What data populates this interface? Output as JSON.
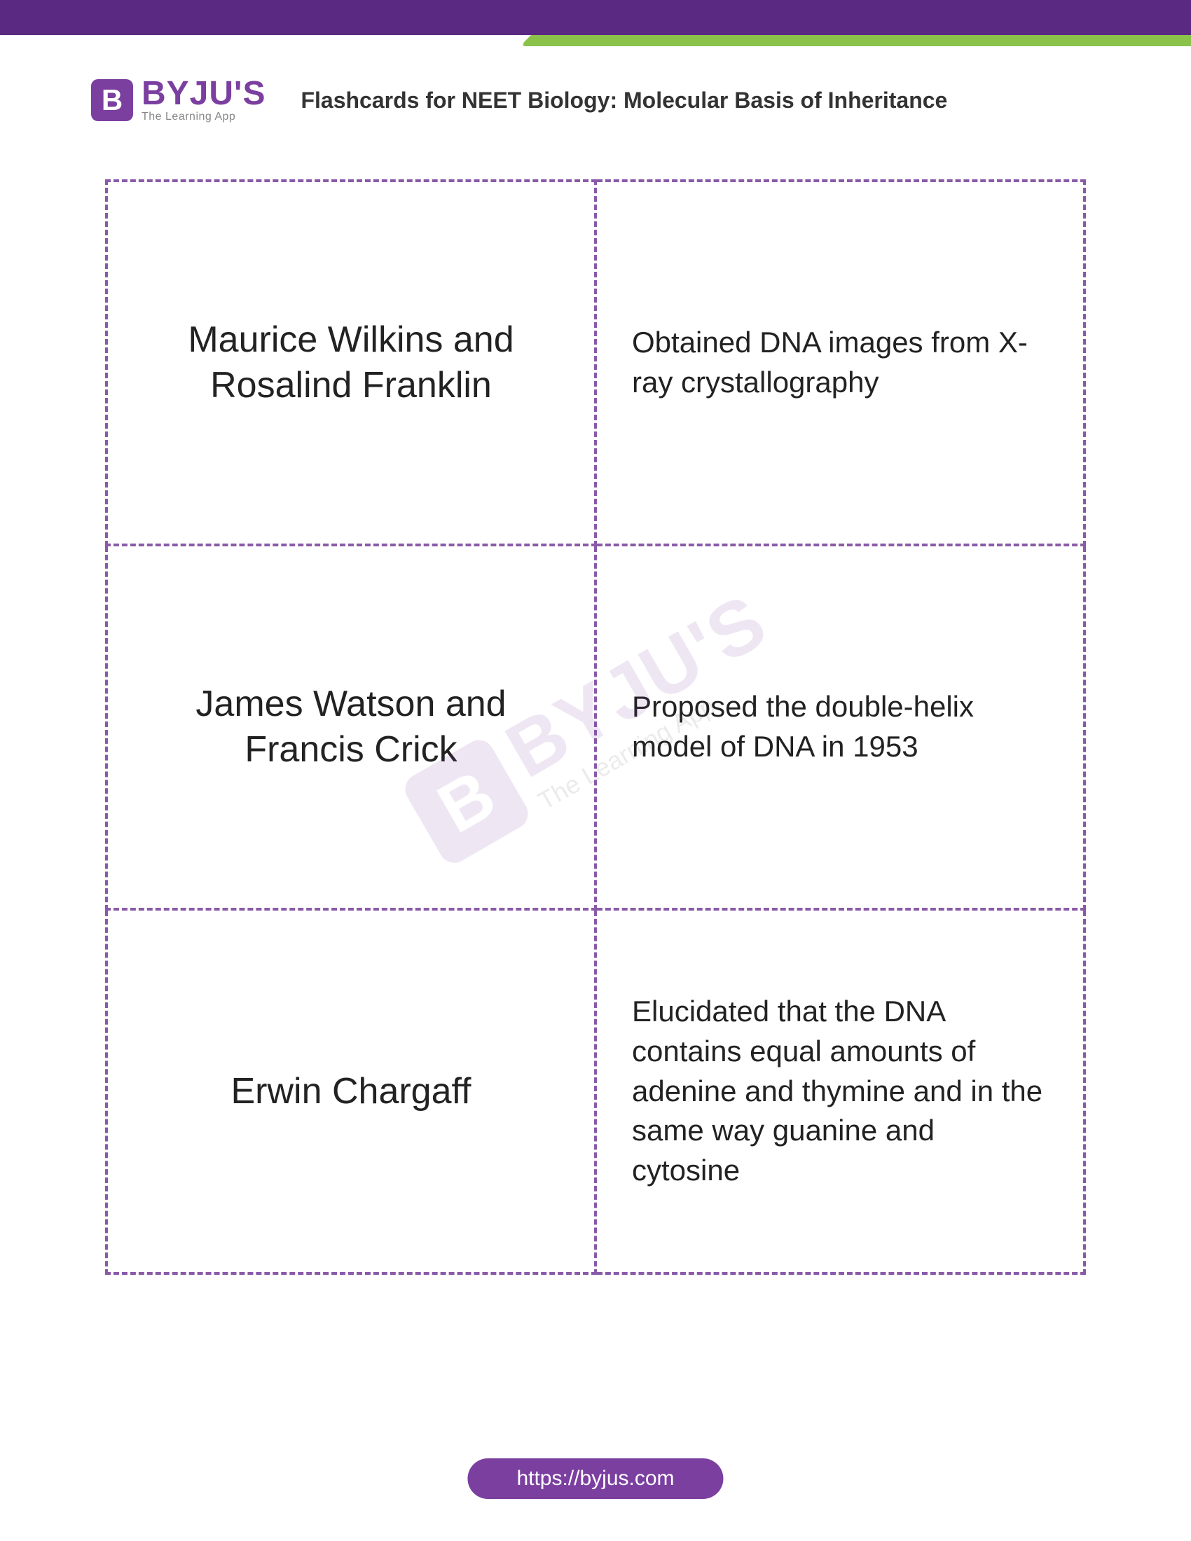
{
  "logo": {
    "letter": "B",
    "brand": "BYJU'S",
    "tagline": "The Learning App"
  },
  "page_title": "Flashcards for NEET Biology: Molecular Basis of Inheritance",
  "flashcards": [
    {
      "term": "Maurice Wilkins and Rosalind Franklin",
      "definition": "Obtained DNA images from X-ray crystallography"
    },
    {
      "term": "James Watson and Francis Crick",
      "definition": "Proposed the double-helix model of DNA in 1953"
    },
    {
      "term": "Erwin Chargaff",
      "definition": "Elucidated that the DNA contains equal amounts of adenine and thymine and in the same way guanine and cytosine"
    }
  ],
  "watermark": {
    "letter": "B",
    "brand": "BYJU'S",
    "tagline": "The Learning App"
  },
  "footer_url": "https://byjus.com",
  "colors": {
    "brand_purple": "#7b3fa0",
    "dark_purple": "#5a2a82",
    "green": "#8bc34a",
    "border": "#8a5aa8",
    "text": "#222222"
  }
}
